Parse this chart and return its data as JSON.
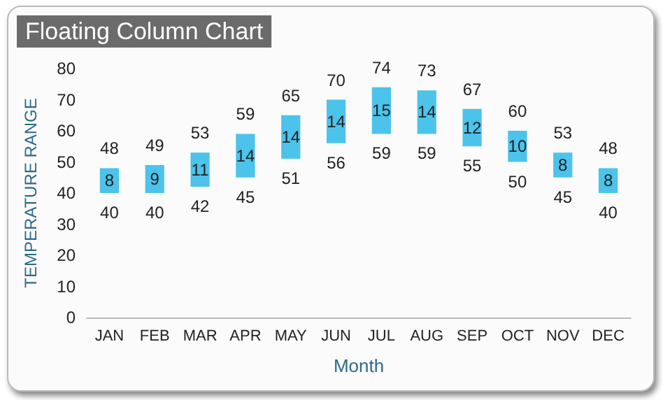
{
  "chart_data": {
    "type": "bar",
    "title": "Floating Column Chart",
    "xlabel": "Month",
    "ylabel": "TEMPERATURE RANGE",
    "categories": [
      "JAN",
      "FEB",
      "MAR",
      "APR",
      "MAY",
      "JUN",
      "JUL",
      "AUG",
      "SEP",
      "OCT",
      "NOV",
      "DEC"
    ],
    "base": [
      40,
      40,
      42,
      45,
      51,
      56,
      59,
      59,
      55,
      50,
      45,
      40
    ],
    "values": [
      8,
      9,
      11,
      14,
      14,
      14,
      15,
      14,
      12,
      10,
      8,
      8
    ],
    "color": "#4cc3ea",
    "data_labels": true,
    "ylim": [
      0,
      80
    ],
    "yticks": [
      0,
      10,
      20,
      30,
      40,
      50,
      60,
      70,
      80
    ],
    "grid": false,
    "annotations": [
      {
        "text": "48",
        "x": "JAN",
        "y": 48
      },
      {
        "text": "40",
        "x": "JAN",
        "y": 40
      },
      {
        "text": "49",
        "x": "FEB",
        "y": 49
      },
      {
        "text": "40",
        "x": "FEB",
        "y": 40
      },
      {
        "text": "53",
        "x": "MAR",
        "y": 53
      },
      {
        "text": "42",
        "x": "MAR",
        "y": 42
      },
      {
        "text": "59",
        "x": "APR",
        "y": 59
      },
      {
        "text": "45",
        "x": "APR",
        "y": 45
      },
      {
        "text": "65",
        "x": "MAY",
        "y": 65
      },
      {
        "text": "51",
        "x": "MAY",
        "y": 51
      },
      {
        "text": "70",
        "x": "JUN",
        "y": 70
      },
      {
        "text": "56",
        "x": "JUN",
        "y": 56
      },
      {
        "text": "74",
        "x": "JUL",
        "y": 74
      },
      {
        "text": "59",
        "x": "JUL",
        "y": 59
      },
      {
        "text": "73",
        "x": "AUG",
        "y": 73
      },
      {
        "text": "59",
        "x": "AUG",
        "y": 59
      },
      {
        "text": "67",
        "x": "SEP",
        "y": 67
      },
      {
        "text": "55",
        "x": "SEP",
        "y": 55
      },
      {
        "text": "60",
        "x": "OCT",
        "y": 60
      },
      {
        "text": "50",
        "x": "OCT",
        "y": 50
      },
      {
        "text": "53",
        "x": "NOV",
        "y": 53
      },
      {
        "text": "45",
        "x": "NOV",
        "y": 45
      },
      {
        "text": "48",
        "x": "DEC",
        "y": 48
      },
      {
        "text": "40",
        "x": "DEC",
        "y": 40
      }
    ]
  }
}
